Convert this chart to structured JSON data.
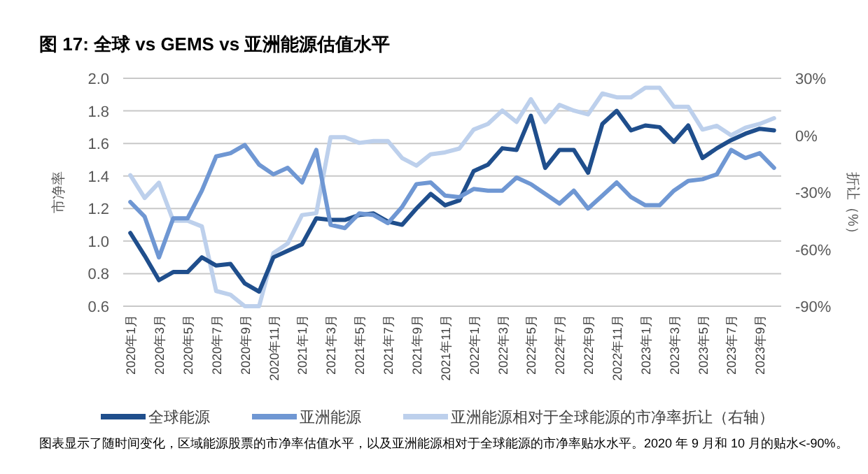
{
  "chart_data": {
    "type": "line",
    "title": "图 17:  全球 vs GEMS vs 亚洲能源估值水平",
    "ylabel": "市净率",
    "y2label": "折让（%）",
    "annotations": [
      "图表显示了随时间变化，区域能源股票的市净率估值水平，以及亚洲能源相对于全球能源的市净率贴水水平。2020 年 9 月和 10 月的贴水<-90%。"
    ],
    "categories": [
      "2020年1月",
      null,
      "2020年3月",
      null,
      "2020年5月",
      null,
      "2020年7月",
      null,
      "2020年9月",
      null,
      "2020年11月",
      null,
      "2021年1月",
      null,
      "2021年3月",
      null,
      "2021年5月",
      null,
      "2021年7月",
      null,
      "2021年9月",
      null,
      "2021年11月",
      null,
      "2022年1月",
      null,
      "2022年3月",
      null,
      "2022年5月",
      null,
      "2022年7月",
      null,
      "2022年9月",
      null,
      "2022年11月",
      null,
      "2023年1月",
      null,
      "2023年3月",
      null,
      "2023年5月",
      null,
      "2023年7月",
      null,
      "2023年9月",
      null
    ],
    "series": [
      {
        "name": "全球能源",
        "color": "#1f4e8c",
        "values": [
          1.05,
          0.91,
          0.76,
          0.81,
          0.81,
          0.9,
          0.85,
          0.86,
          0.74,
          0.69,
          0.9,
          0.94,
          0.98,
          1.14,
          1.13,
          1.13,
          1.16,
          1.17,
          1.12,
          1.1,
          1.2,
          1.29,
          1.22,
          1.25,
          1.43,
          1.47,
          1.57,
          1.56,
          1.77,
          1.45,
          1.56,
          1.56,
          1.42,
          1.72,
          1.8,
          1.68,
          1.71,
          1.7,
          1.61,
          1.71,
          1.51,
          1.57,
          1.62,
          1.66,
          1.69,
          1.68
        ]
      },
      {
        "name": "亚洲能源",
        "color": "#6f97d3",
        "values": [
          1.24,
          1.15,
          0.9,
          1.14,
          1.14,
          1.31,
          1.52,
          1.54,
          1.59,
          1.47,
          1.41,
          1.45,
          1.36,
          1.56,
          1.1,
          1.08,
          1.17,
          1.16,
          1.11,
          1.21,
          1.35,
          1.36,
          1.28,
          1.27,
          1.32,
          1.31,
          1.31,
          1.39,
          1.35,
          1.29,
          1.23,
          1.31,
          1.2,
          1.28,
          1.36,
          1.27,
          1.22,
          1.22,
          1.31,
          1.37,
          1.38,
          1.41,
          1.56,
          1.51,
          1.54,
          1.45
        ]
      },
      {
        "name": "亚洲能源相对于全球能源的市净率折让（右轴）",
        "color": "#bdd0ec",
        "axis": "y2",
        "values": [
          -21,
          -33,
          -25,
          -45,
          -45,
          -48,
          -82,
          -84,
          -90,
          -90,
          -62,
          -57,
          -42,
          -41,
          -1,
          -1,
          -4,
          -3,
          -3,
          -12,
          -16,
          -10,
          -9,
          -7,
          3,
          6,
          13,
          7,
          19,
          7,
          16,
          13,
          11,
          22,
          20,
          20,
          25,
          25,
          15,
          15,
          3,
          5,
          0,
          4,
          6,
          9
        ]
      }
    ],
    "ylim": [
      0.6,
      2.0
    ],
    "yticks": [
      {
        "value": 0.6,
        "label": "0.6"
      },
      {
        "value": 0.8,
        "label": "0.8"
      },
      {
        "value": 1.0,
        "label": "1.0"
      },
      {
        "value": 1.2,
        "label": "1.2"
      },
      {
        "value": 1.4,
        "label": "1.4"
      },
      {
        "value": 1.6,
        "label": "1.6"
      },
      {
        "value": 1.8,
        "label": "1.8"
      },
      {
        "value": 2.0,
        "label": "2.0"
      }
    ],
    "y2lim": [
      -90,
      30
    ],
    "y2ticks": [
      {
        "value": -90,
        "label": "-90%"
      },
      {
        "value": -60,
        "label": "-60%"
      },
      {
        "value": -30,
        "label": "-30%"
      },
      {
        "value": 0,
        "label": "0%"
      },
      {
        "value": 30,
        "label": "30%"
      }
    ],
    "grid": "y",
    "legend": "bottom"
  }
}
